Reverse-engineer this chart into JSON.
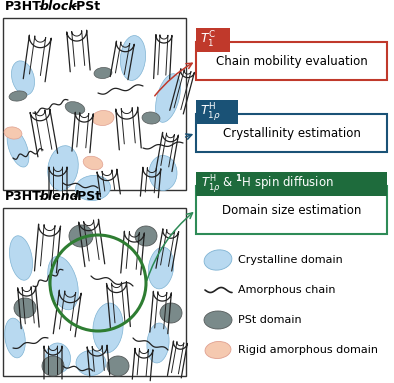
{
  "box1_color": "#c0392b",
  "box2_color": "#1a5276",
  "box3_fill": "#1e6b3c",
  "box3_border": "#2e8b57",
  "crystalline_color": "#b8d9f0",
  "crystalline_border": "#7fb3d3",
  "pst_color": "#7a8a8a",
  "pst_border": "#555a5a",
  "rigid_color": "#f5c9b0",
  "rigid_border": "#e0a090",
  "chain_color": "#222222",
  "background_color": "#ffffff",
  "box1_text": "Chain mobility evaluation",
  "box2_text": "Crystallinity estimation",
  "box3_text": "Domain size estimation"
}
